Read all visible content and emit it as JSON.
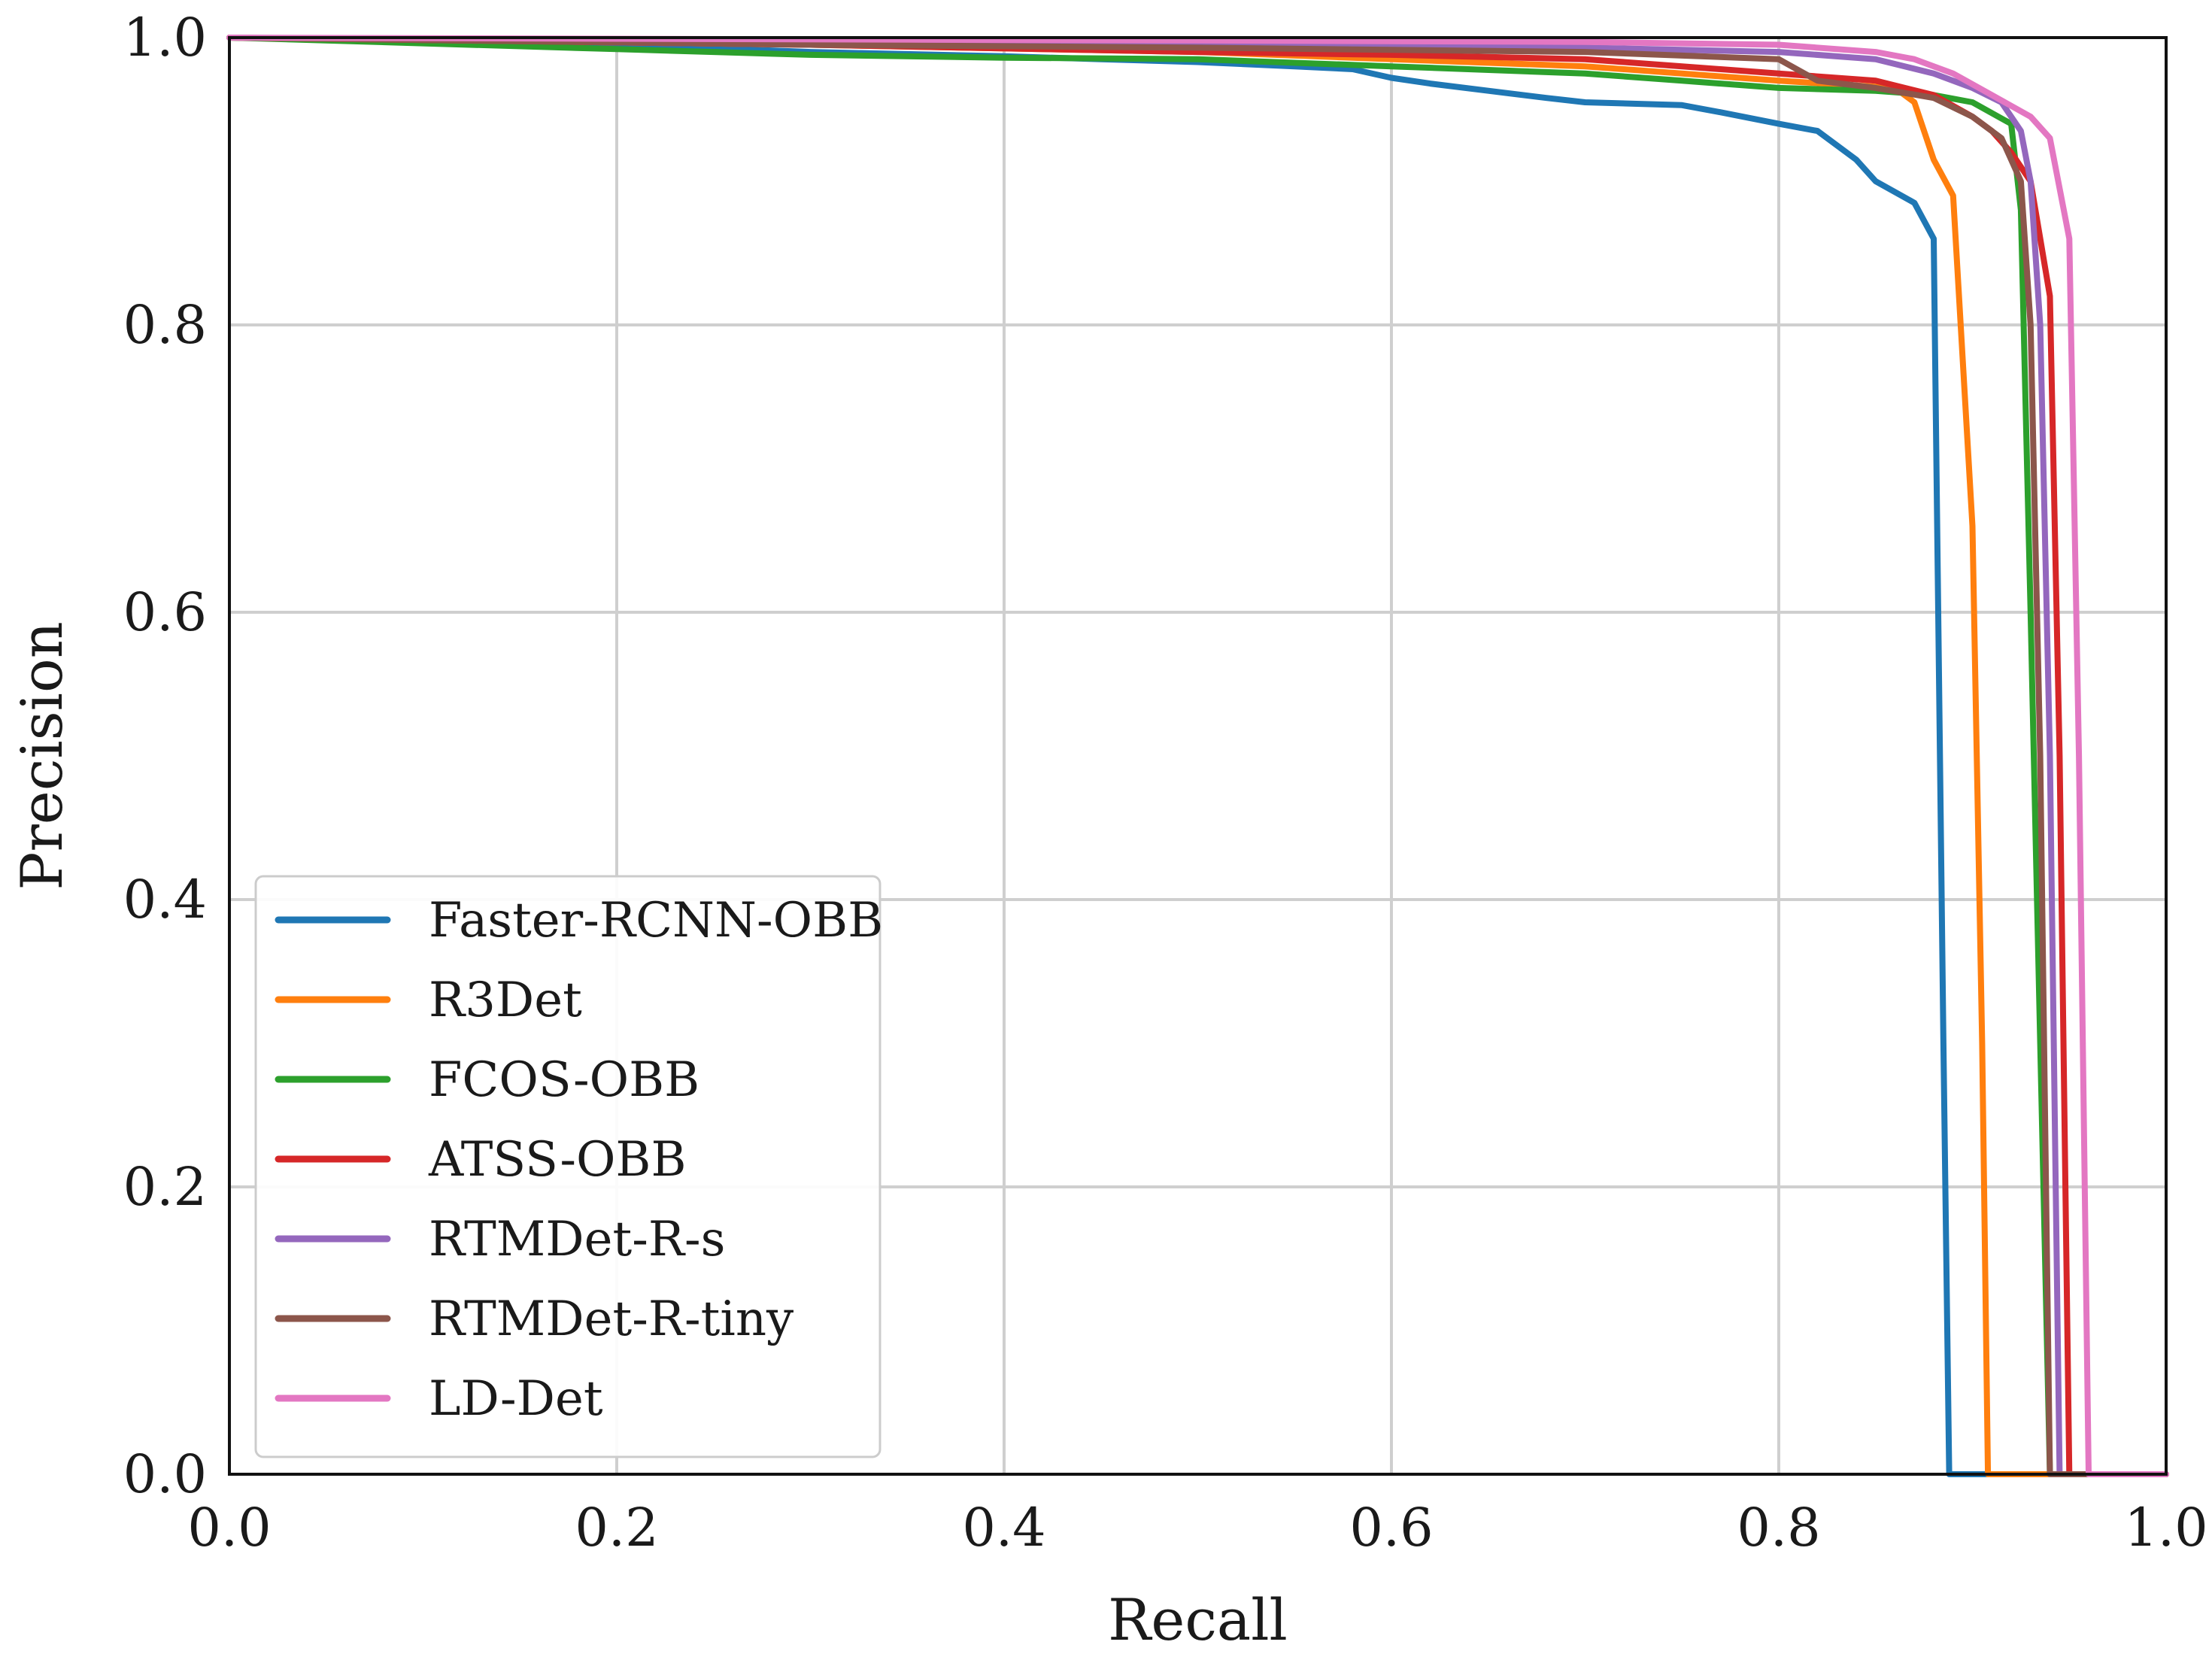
{
  "chart_data": {
    "type": "line",
    "title": "",
    "xlabel": "Recall",
    "ylabel": "Precision",
    "xlim": [
      0.0,
      1.0
    ],
    "ylim": [
      0.0,
      1.0
    ],
    "grid": true,
    "legend_position": "lower-left",
    "x_ticks": [
      "0.0",
      "0.2",
      "0.4",
      "0.6",
      "0.8",
      "1.0"
    ],
    "y_ticks": [
      "0.0",
      "0.2",
      "0.4",
      "0.6",
      "0.8",
      "1.0"
    ],
    "series": [
      {
        "name": "Faster-RCNN-OBB",
        "color": "#1f77b4",
        "points": [
          [
            0.0,
            1.0
          ],
          [
            0.2,
            0.995
          ],
          [
            0.3,
            0.99
          ],
          [
            0.4,
            0.987
          ],
          [
            0.45,
            0.985
          ],
          [
            0.5,
            0.983
          ],
          [
            0.55,
            0.98
          ],
          [
            0.58,
            0.978
          ],
          [
            0.6,
            0.972
          ],
          [
            0.62,
            0.968
          ],
          [
            0.65,
            0.963
          ],
          [
            0.68,
            0.958
          ],
          [
            0.7,
            0.955
          ],
          [
            0.75,
            0.953
          ],
          [
            0.77,
            0.948
          ],
          [
            0.8,
            0.94
          ],
          [
            0.82,
            0.935
          ],
          [
            0.84,
            0.915
          ],
          [
            0.85,
            0.9
          ],
          [
            0.87,
            0.885
          ],
          [
            0.88,
            0.86
          ],
          [
            0.885,
            0.3
          ],
          [
            0.888,
            0.0
          ],
          [
            1.0,
            0.0
          ]
        ]
      },
      {
        "name": "R3Det",
        "color": "#ff7f0e",
        "points": [
          [
            0.0,
            1.0
          ],
          [
            0.3,
            0.995
          ],
          [
            0.5,
            0.99
          ],
          [
            0.7,
            0.98
          ],
          [
            0.8,
            0.97
          ],
          [
            0.86,
            0.965
          ],
          [
            0.87,
            0.955
          ],
          [
            0.88,
            0.915
          ],
          [
            0.89,
            0.89
          ],
          [
            0.9,
            0.66
          ],
          [
            0.905,
            0.3
          ],
          [
            0.908,
            0.0
          ],
          [
            1.0,
            0.0
          ]
        ]
      },
      {
        "name": "FCOS-OBB",
        "color": "#2ca02c",
        "points": [
          [
            0.0,
            1.0
          ],
          [
            0.2,
            0.992
          ],
          [
            0.3,
            0.988
          ],
          [
            0.4,
            0.986
          ],
          [
            0.5,
            0.985
          ],
          [
            0.6,
            0.98
          ],
          [
            0.7,
            0.975
          ],
          [
            0.75,
            0.97
          ],
          [
            0.8,
            0.965
          ],
          [
            0.85,
            0.963
          ],
          [
            0.88,
            0.96
          ],
          [
            0.9,
            0.955
          ],
          [
            0.92,
            0.94
          ],
          [
            0.925,
            0.88
          ],
          [
            0.93,
            0.6
          ],
          [
            0.935,
            0.3
          ],
          [
            0.94,
            0.0
          ],
          [
            1.0,
            0.0
          ]
        ]
      },
      {
        "name": "ATSS-OBB",
        "color": "#d62728",
        "points": [
          [
            0.0,
            1.0
          ],
          [
            0.3,
            0.995
          ],
          [
            0.5,
            0.99
          ],
          [
            0.6,
            0.988
          ],
          [
            0.7,
            0.985
          ],
          [
            0.75,
            0.98
          ],
          [
            0.8,
            0.975
          ],
          [
            0.85,
            0.97
          ],
          [
            0.88,
            0.96
          ],
          [
            0.9,
            0.945
          ],
          [
            0.91,
            0.935
          ],
          [
            0.92,
            0.92
          ],
          [
            0.93,
            0.9
          ],
          [
            0.94,
            0.82
          ],
          [
            0.945,
            0.5
          ],
          [
            0.948,
            0.2
          ],
          [
            0.95,
            0.0
          ],
          [
            1.0,
            0.0
          ]
        ]
      },
      {
        "name": "RTMDet-R-s",
        "color": "#9467bd",
        "points": [
          [
            0.0,
            1.0
          ],
          [
            0.3,
            0.997
          ],
          [
            0.5,
            0.995
          ],
          [
            0.7,
            0.993
          ],
          [
            0.8,
            0.99
          ],
          [
            0.85,
            0.985
          ],
          [
            0.88,
            0.975
          ],
          [
            0.9,
            0.965
          ],
          [
            0.915,
            0.955
          ],
          [
            0.925,
            0.935
          ],
          [
            0.93,
            0.9
          ],
          [
            0.935,
            0.8
          ],
          [
            0.94,
            0.5
          ],
          [
            0.943,
            0.2
          ],
          [
            0.945,
            0.0
          ],
          [
            1.0,
            0.0
          ]
        ]
      },
      {
        "name": "RTMDet-R-tiny",
        "color": "#8c564b",
        "points": [
          [
            0.0,
            1.0
          ],
          [
            0.3,
            0.995
          ],
          [
            0.5,
            0.993
          ],
          [
            0.7,
            0.99
          ],
          [
            0.8,
            0.985
          ],
          [
            0.82,
            0.97
          ],
          [
            0.85,
            0.965
          ],
          [
            0.88,
            0.958
          ],
          [
            0.9,
            0.945
          ],
          [
            0.915,
            0.93
          ],
          [
            0.925,
            0.9
          ],
          [
            0.93,
            0.8
          ],
          [
            0.935,
            0.5
          ],
          [
            0.938,
            0.2
          ],
          [
            0.94,
            0.0
          ],
          [
            1.0,
            0.0
          ]
        ]
      },
      {
        "name": "LD-Det",
        "color": "#e377c2",
        "points": [
          [
            0.0,
            1.0
          ],
          [
            0.5,
            0.998
          ],
          [
            0.7,
            0.997
          ],
          [
            0.8,
            0.995
          ],
          [
            0.85,
            0.99
          ],
          [
            0.87,
            0.985
          ],
          [
            0.89,
            0.975
          ],
          [
            0.91,
            0.96
          ],
          [
            0.93,
            0.945
          ],
          [
            0.94,
            0.93
          ],
          [
            0.95,
            0.86
          ],
          [
            0.955,
            0.5
          ],
          [
            0.958,
            0.2
          ],
          [
            0.96,
            0.0
          ],
          [
            1.0,
            0.0
          ]
        ]
      }
    ]
  }
}
